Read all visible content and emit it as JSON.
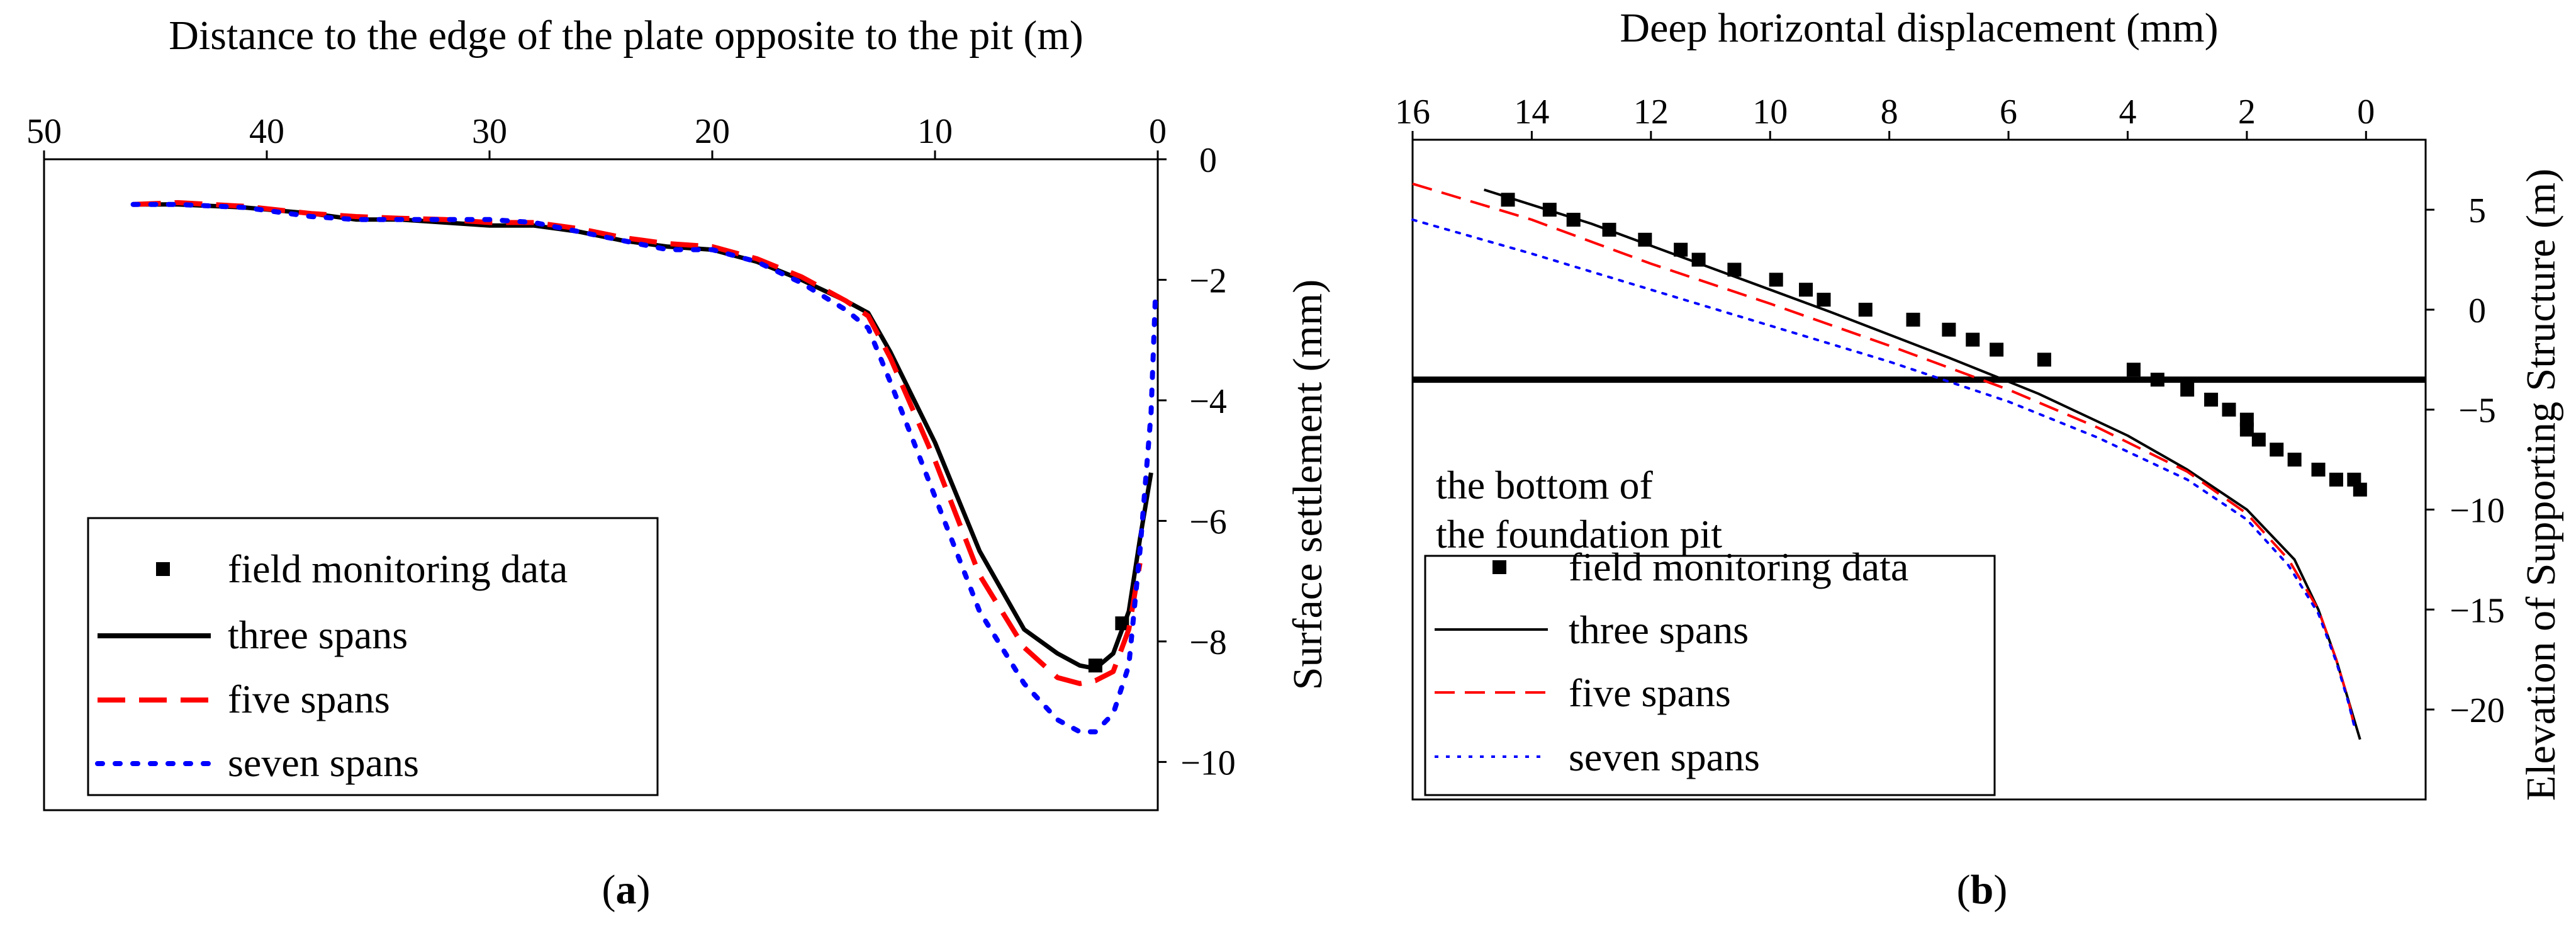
{
  "colors": {
    "field": "#000000",
    "three_spans": "#000000",
    "five_spans": "#ff0000",
    "seven_spans": "#0000ff"
  },
  "chart_data": [
    {
      "id": "a",
      "caption": "(a)",
      "type": "line",
      "xlabel": "Distance to the edge of the plate opposite to the pit (m)",
      "ylabel": "Surface settlement (mm)",
      "xlim": [
        50,
        0
      ],
      "ylim": [
        -10.8,
        0
      ],
      "xticks": [
        50,
        40,
        30,
        20,
        10,
        0
      ],
      "yticks": [
        0,
        -2,
        -4,
        -6,
        -8,
        -10
      ],
      "legend_position": "bottom-left",
      "series": [
        {
          "name": "field monitoring data",
          "style": "marker-square",
          "x": [
            2.8,
            1.6
          ],
          "y": [
            -8.4,
            -7.7
          ]
        },
        {
          "name": "three spans",
          "style": "solid",
          "x": [
            46,
            44,
            41,
            38,
            36,
            34,
            32,
            30,
            28,
            26,
            24,
            22,
            20,
            18,
            16,
            14,
            13,
            12,
            10,
            8,
            6,
            4.5,
            3.5,
            2.8,
            2,
            1.3,
            0.8,
            0.3
          ],
          "y": [
            -0.75,
            -0.75,
            -0.8,
            -0.9,
            -1.0,
            -1.0,
            -1.05,
            -1.1,
            -1.1,
            -1.2,
            -1.35,
            -1.45,
            -1.5,
            -1.7,
            -2.0,
            -2.35,
            -2.55,
            -3.2,
            -4.7,
            -6.5,
            -7.8,
            -8.2,
            -8.4,
            -8.45,
            -8.2,
            -7.5,
            -6.3,
            -5.2
          ]
        },
        {
          "name": "five spans",
          "style": "dashed",
          "x": [
            46,
            44,
            41,
            38,
            36,
            34,
            32,
            30,
            28,
            26,
            24,
            22,
            20,
            18,
            16,
            14,
            13,
            12,
            10,
            8,
            6,
            4.5,
            3.5,
            2.8,
            2,
            1.3,
            0.8
          ],
          "y": [
            -0.75,
            -0.72,
            -0.78,
            -0.9,
            -0.95,
            -0.98,
            -1.0,
            -1.05,
            -1.05,
            -1.15,
            -1.3,
            -1.4,
            -1.45,
            -1.65,
            -1.95,
            -2.35,
            -2.6,
            -3.3,
            -5.0,
            -6.9,
            -8.1,
            -8.6,
            -8.7,
            -8.65,
            -8.5,
            -7.8,
            -6.7
          ]
        },
        {
          "name": "seven spans",
          "style": "dotted",
          "x": [
            46,
            44,
            41,
            38,
            36,
            34,
            32,
            30,
            28,
            26,
            24,
            22,
            20,
            18,
            16,
            14,
            13,
            12,
            10,
            8,
            6,
            4.5,
            3.5,
            2.8,
            2,
            1.3,
            0.8,
            0.3,
            0.1
          ],
          "y": [
            -0.75,
            -0.75,
            -0.8,
            -0.95,
            -1.0,
            -1.0,
            -1.0,
            -1.0,
            -1.05,
            -1.2,
            -1.35,
            -1.5,
            -1.5,
            -1.7,
            -2.05,
            -2.5,
            -2.8,
            -3.7,
            -5.6,
            -7.5,
            -8.7,
            -9.3,
            -9.5,
            -9.5,
            -9.2,
            -8.4,
            -6.5,
            -4.2,
            -2.2
          ]
        }
      ]
    },
    {
      "id": "b",
      "caption": "(b)",
      "type": "line",
      "xlabel": "Deep horizontal displacement (mm)",
      "ylabel": "Elevation of Supporting Structure (m)",
      "xlim": [
        16,
        -1
      ],
      "ylim": [
        -24.5,
        8.5
      ],
      "xticks": [
        16,
        14,
        12,
        10,
        8,
        6,
        4,
        2,
        0
      ],
      "yticks": [
        5,
        0,
        -5,
        -10,
        -15,
        -20
      ],
      "legend_position": "bottom-left",
      "annotation": {
        "lines": [
          "the bottom of",
          "the foundation pit"
        ],
        "reference_y": -3.5
      },
      "series": [
        {
          "name": "field monitoring data",
          "style": "marker-square",
          "x": [
            14.4,
            13.7,
            13.3,
            12.7,
            12.1,
            11.5,
            11.2,
            10.6,
            9.9,
            9.4,
            9.1,
            8.4,
            7.6,
            7.0,
            6.6,
            6.2,
            5.4,
            3.9,
            3.5,
            3.0,
            2.6,
            2.3,
            2.0,
            2.0,
            1.8,
            1.5,
            1.2,
            0.8,
            0.5,
            0.2,
            0.1
          ],
          "y": [
            5.5,
            5.0,
            4.5,
            4.0,
            3.5,
            3.0,
            2.5,
            2.0,
            1.5,
            1.0,
            0.5,
            0.0,
            -0.5,
            -1.0,
            -1.5,
            -2.0,
            -2.5,
            -3.0,
            -3.5,
            -4.0,
            -4.5,
            -5.0,
            -5.5,
            -6.0,
            -6.5,
            -7.0,
            -7.5,
            -8.0,
            -8.5,
            -8.5,
            -9.0
          ]
        },
        {
          "name": "three spans",
          "style": "solid",
          "x": [
            14.8,
            13.0,
            11.0,
            9.0,
            7.0,
            5.5,
            4.0,
            3.0,
            2.0,
            1.2,
            0.8,
            0.5,
            0.3,
            0.1
          ],
          "y": [
            6.0,
            4.3,
            2.1,
            -0.1,
            -2.4,
            -4.2,
            -6.3,
            -8.0,
            -10.0,
            -12.5,
            -15.0,
            -17.5,
            -19.5,
            -21.5
          ]
        },
        {
          "name": "five spans",
          "style": "dashed",
          "x": [
            16.0,
            14.0,
            12.0,
            10.0,
            8.0,
            6.0,
            4.5,
            3.0,
            2.0,
            1.3,
            0.8,
            0.5,
            0.3,
            0.2
          ],
          "y": [
            6.3,
            4.5,
            2.3,
            0.3,
            -1.8,
            -4.0,
            -5.9,
            -8.1,
            -10.2,
            -12.5,
            -15.0,
            -17.5,
            -19.5,
            -20.8
          ]
        },
        {
          "name": "seven spans",
          "style": "dotted",
          "x": [
            16.0,
            14.0,
            12.0,
            10.0,
            8.0,
            6.0,
            4.5,
            3.0,
            2.0,
            1.3,
            0.8,
            0.5,
            0.3,
            0.2
          ],
          "y": [
            4.5,
            2.8,
            1.0,
            -0.8,
            -2.6,
            -4.6,
            -6.4,
            -8.5,
            -10.5,
            -12.8,
            -15.2,
            -17.6,
            -19.6,
            -20.8
          ]
        }
      ]
    }
  ]
}
